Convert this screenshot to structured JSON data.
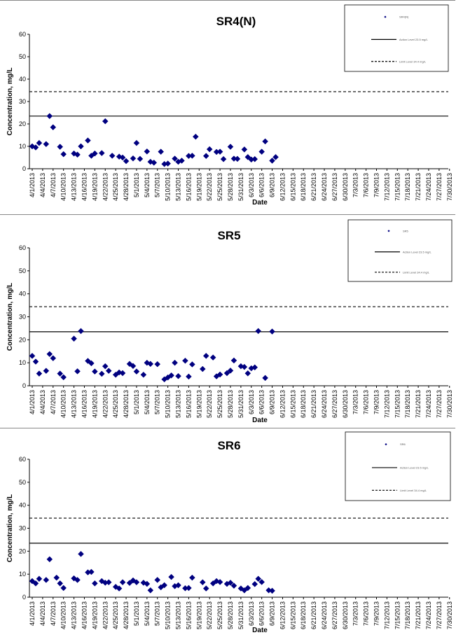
{
  "dates": [
    "4/1/2013",
    "4/4/2013",
    "4/7/2013",
    "4/10/2013",
    "4/13/2013",
    "4/16/2013",
    "4/19/2013",
    "4/22/2013",
    "4/25/2013",
    "4/28/2013",
    "5/1/2013",
    "5/4/2013",
    "5/7/2013",
    "5/10/2013",
    "5/13/2013",
    "5/16/2013",
    "5/19/2013",
    "5/22/2013",
    "5/25/2013",
    "5/28/2013",
    "5/31/2013",
    "6/3/2013",
    "6/6/2013",
    "6/9/2013",
    "6/12/2013",
    "6/15/2013",
    "6/18/2013",
    "6/21/2013",
    "6/24/2013",
    "6/27/2013",
    "6/30/2013",
    "7/3/2013",
    "7/6/2013",
    "7/9/2013",
    "7/12/2013",
    "7/15/2013",
    "7/18/2013",
    "7/21/2013",
    "7/24/2013",
    "7/27/2013",
    "7/30/2013"
  ],
  "chart_data": [
    {
      "type": "scatter",
      "title": "SR4(N)",
      "xlabel": "Date",
      "ylabel": "Concentration, mg/L",
      "ylim": [
        0,
        60
      ],
      "yticks": [
        "0",
        "10",
        "20",
        "30",
        "40",
        "50",
        "60"
      ],
      "grid": false,
      "legend_position": "top-right",
      "legend": [
        "SR4(N)",
        "Action Level 23.5 mg/L",
        "Limit Level 34.4 mg/L"
      ],
      "hlines": [
        {
          "label": "Action Level",
          "value": 23.5,
          "style": "solid"
        },
        {
          "label": "Limit Level",
          "value": 34.4,
          "style": "dashed"
        }
      ],
      "series": [
        {
          "name": "SR4(N)",
          "points": [
            [
              "2013-04-01",
              10
            ],
            [
              "2013-04-02",
              9.5
            ],
            [
              "2013-04-03",
              11.5
            ],
            [
              "2013-04-05",
              11
            ],
            [
              "2013-04-06",
              23.5
            ],
            [
              "2013-04-07",
              18.5
            ],
            [
              "2013-04-09",
              9.8
            ],
            [
              "2013-04-10",
              6.5
            ],
            [
              "2013-04-13",
              6.8
            ],
            [
              "2013-04-14",
              6.3
            ],
            [
              "2013-04-15",
              10
            ],
            [
              "2013-04-17",
              12.6
            ],
            [
              "2013-04-18",
              5.8
            ],
            [
              "2013-04-19",
              6.8
            ],
            [
              "2013-04-21",
              7
            ],
            [
              "2013-04-22",
              21.2
            ],
            [
              "2013-04-24",
              5.8
            ],
            [
              "2013-04-26",
              5.4
            ],
            [
              "2013-04-27",
              5
            ],
            [
              "2013-04-28",
              3.4
            ],
            [
              "2013-04-30",
              4.6
            ],
            [
              "2013-05-01",
              11.5
            ],
            [
              "2013-05-02",
              4.4
            ],
            [
              "2013-05-04",
              7.7
            ],
            [
              "2013-05-05",
              3.1
            ],
            [
              "2013-05-06",
              2.7
            ],
            [
              "2013-05-08",
              7.6
            ],
            [
              "2013-05-09",
              2.1
            ],
            [
              "2013-05-10",
              2.3
            ],
            [
              "2013-05-12",
              4.5
            ],
            [
              "2013-05-13",
              3.1
            ],
            [
              "2013-05-14",
              3.6
            ],
            [
              "2013-05-16",
              5.7
            ],
            [
              "2013-05-17",
              5.8
            ],
            [
              "2013-05-18",
              14.3
            ],
            [
              "2013-05-21",
              5.7
            ],
            [
              "2013-05-22",
              8.7
            ],
            [
              "2013-05-24",
              7.5
            ],
            [
              "2013-05-25",
              7.6
            ],
            [
              "2013-05-26",
              4.3
            ],
            [
              "2013-05-28",
              9.8
            ],
            [
              "2013-05-29",
              4.5
            ],
            [
              "2013-05-30",
              4.4
            ],
            [
              "2013-06-01",
              8.6
            ],
            [
              "2013-06-02",
              5.2
            ],
            [
              "2013-06-03",
              4.1
            ],
            [
              "2013-06-04",
              4.3
            ],
            [
              "2013-06-06",
              7.6
            ],
            [
              "2013-06-07",
              12.2
            ],
            [
              "2013-06-09",
              3.6
            ],
            [
              "2013-06-10",
              5.2
            ]
          ]
        }
      ]
    },
    {
      "type": "scatter",
      "title": "SR5",
      "xlabel": "Date",
      "ylabel": "Concentration, mg/L",
      "ylim": [
        0,
        60
      ],
      "yticks": [
        "0",
        "10",
        "20",
        "30",
        "40",
        "50",
        "60"
      ],
      "grid": false,
      "legend_position": "top-right",
      "legend": [
        "SR5",
        "Action Level 23.5 mg/L",
        "Limit Level 34.4 mg/L"
      ],
      "hlines": [
        {
          "label": "Action Level",
          "value": 23.5,
          "style": "solid"
        },
        {
          "label": "Limit Level",
          "value": 34.4,
          "style": "dashed"
        }
      ],
      "series": [
        {
          "name": "SR5",
          "points": [
            [
              "2013-04-01",
              13
            ],
            [
              "2013-04-02",
              10.5
            ],
            [
              "2013-04-03",
              5.3
            ],
            [
              "2013-04-05",
              6.5
            ],
            [
              "2013-04-06",
              13.8
            ],
            [
              "2013-04-07",
              12
            ],
            [
              "2013-04-09",
              5.3
            ],
            [
              "2013-04-10",
              3.7
            ],
            [
              "2013-04-13",
              20.5
            ],
            [
              "2013-04-14",
              6.3
            ],
            [
              "2013-04-15",
              23.8
            ],
            [
              "2013-04-17",
              10.8
            ],
            [
              "2013-04-18",
              9.8
            ],
            [
              "2013-04-19",
              6.2
            ],
            [
              "2013-04-21",
              5.2
            ],
            [
              "2013-04-22",
              8.5
            ],
            [
              "2013-04-23",
              6.5
            ],
            [
              "2013-04-25",
              4.8
            ],
            [
              "2013-04-26",
              5.8
            ],
            [
              "2013-04-27",
              5.5
            ],
            [
              "2013-04-29",
              9.5
            ],
            [
              "2013-04-30",
              8.6
            ],
            [
              "2013-05-01",
              6.2
            ],
            [
              "2013-05-03",
              4.8
            ],
            [
              "2013-05-04",
              10
            ],
            [
              "2013-05-05",
              9.5
            ],
            [
              "2013-05-07",
              9.4
            ],
            [
              "2013-05-09",
              2.8
            ],
            [
              "2013-05-10",
              3.6
            ],
            [
              "2013-05-11",
              4.5
            ],
            [
              "2013-05-12",
              10
            ],
            [
              "2013-05-13",
              4.2
            ],
            [
              "2013-05-15",
              10.9
            ],
            [
              "2013-05-16",
              4
            ],
            [
              "2013-05-17",
              9.3
            ],
            [
              "2013-05-20",
              7.3
            ],
            [
              "2013-05-21",
              13
            ],
            [
              "2013-05-23",
              12.3
            ],
            [
              "2013-05-24",
              4.1
            ],
            [
              "2013-05-25",
              4.9
            ],
            [
              "2013-05-27",
              5.5
            ],
            [
              "2013-05-28",
              6.6
            ],
            [
              "2013-05-29",
              11
            ],
            [
              "2013-05-31",
              8.5
            ],
            [
              "2013-06-01",
              8.2
            ],
            [
              "2013-06-02",
              5.4
            ],
            [
              "2013-06-03",
              7.6
            ],
            [
              "2013-06-04",
              8
            ],
            [
              "2013-06-05",
              23.8
            ],
            [
              "2013-06-07",
              3.4
            ],
            [
              "2013-06-09",
              23.6
            ]
          ]
        }
      ]
    },
    {
      "type": "scatter",
      "title": "SR6",
      "xlabel": "Date",
      "ylabel": "Concentration, mg/L",
      "ylim": [
        0,
        60
      ],
      "yticks": [
        "0",
        "10",
        "20",
        "30",
        "40",
        "50",
        "60"
      ],
      "grid": false,
      "legend_position": "top-right",
      "legend": [
        "SR6",
        "Action Level 23.5 mg/L",
        "Limit Level 34.4 mg/L"
      ],
      "hlines": [
        {
          "label": "Action Level",
          "value": 23.5,
          "style": "solid"
        },
        {
          "label": "Limit Level",
          "value": 34.4,
          "style": "dashed"
        }
      ],
      "series": [
        {
          "name": "SR6",
          "points": [
            [
              "2013-04-01",
              7
            ],
            [
              "2013-04-02",
              6
            ],
            [
              "2013-04-03",
              8
            ],
            [
              "2013-04-05",
              7.5
            ],
            [
              "2013-04-06",
              16.5
            ],
            [
              "2013-04-08",
              8.5
            ],
            [
              "2013-04-09",
              6
            ],
            [
              "2013-04-10",
              4
            ],
            [
              "2013-04-13",
              8.2
            ],
            [
              "2013-04-14",
              7.5
            ],
            [
              "2013-04-15",
              18.8
            ],
            [
              "2013-04-17",
              10.8
            ],
            [
              "2013-04-18",
              11
            ],
            [
              "2013-04-19",
              6
            ],
            [
              "2013-04-21",
              7
            ],
            [
              "2013-04-22",
              6.3
            ],
            [
              "2013-04-23",
              6.5
            ],
            [
              "2013-04-25",
              4.5
            ],
            [
              "2013-04-26",
              3.8
            ],
            [
              "2013-04-27",
              6.5
            ],
            [
              "2013-04-29",
              6.2
            ],
            [
              "2013-04-30",
              7.3
            ],
            [
              "2013-05-01",
              6.5
            ],
            [
              "2013-05-03",
              6.3
            ],
            [
              "2013-05-04",
              5.8
            ],
            [
              "2013-05-05",
              3
            ],
            [
              "2013-05-07",
              7.5
            ],
            [
              "2013-05-08",
              4.3
            ],
            [
              "2013-05-09",
              5.2
            ],
            [
              "2013-05-11",
              8.8
            ],
            [
              "2013-05-12",
              4.8
            ],
            [
              "2013-05-13",
              5.2
            ],
            [
              "2013-05-15",
              3.9
            ],
            [
              "2013-05-16",
              4
            ],
            [
              "2013-05-17",
              8.5
            ],
            [
              "2013-05-20",
              6.5
            ],
            [
              "2013-05-21",
              3.8
            ],
            [
              "2013-05-23",
              6
            ],
            [
              "2013-05-24",
              7
            ],
            [
              "2013-05-25",
              6.6
            ],
            [
              "2013-05-27",
              5.8
            ],
            [
              "2013-05-28",
              6.3
            ],
            [
              "2013-05-29",
              5
            ],
            [
              "2013-05-31",
              3.8
            ],
            [
              "2013-06-01",
              3
            ],
            [
              "2013-06-02",
              4
            ],
            [
              "2013-06-04",
              5.7
            ],
            [
              "2013-06-05",
              8
            ],
            [
              "2013-06-06",
              6.6
            ],
            [
              "2013-06-08",
              3
            ],
            [
              "2013-06-09",
              2.8
            ]
          ]
        }
      ]
    }
  ]
}
